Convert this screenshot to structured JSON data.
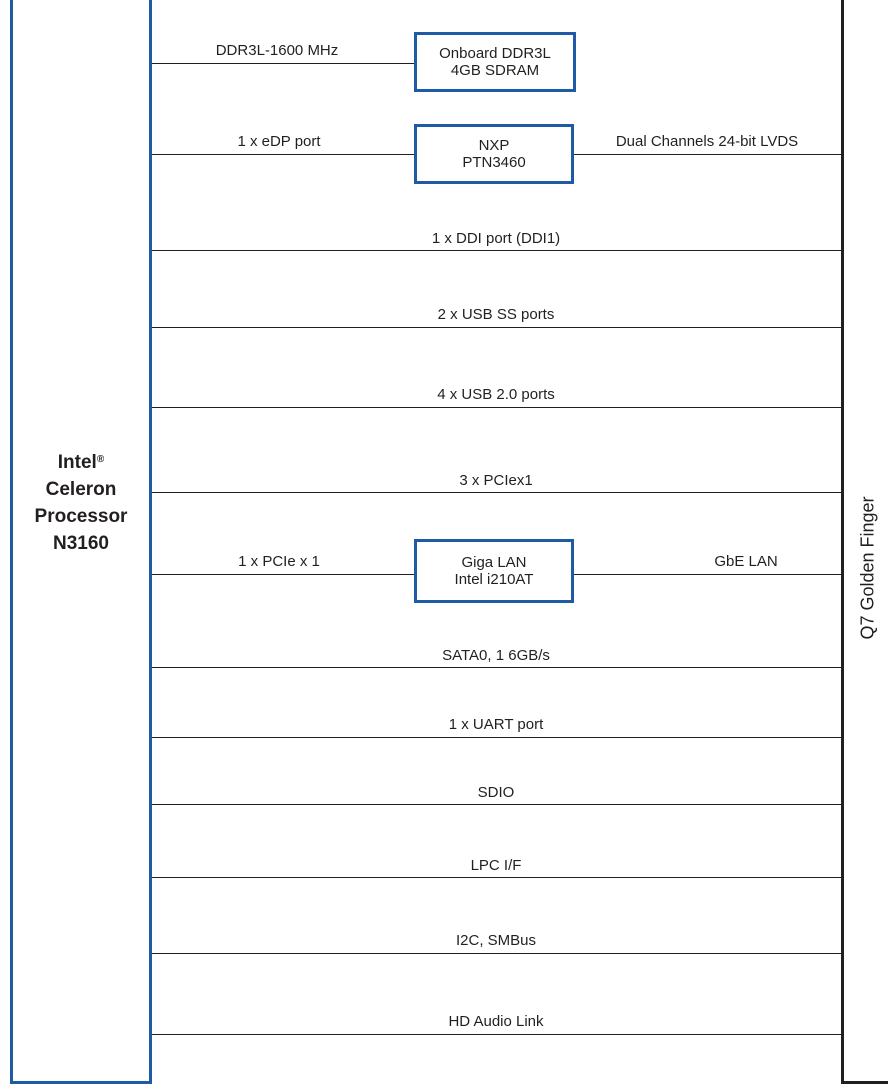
{
  "cpu": {
    "line1": "Intel",
    "reg": "®",
    "line2": "Celeron",
    "line3": "Processor",
    "line4": "N3160"
  },
  "connector": {
    "label": "Q7 Golden Finger"
  },
  "chips": {
    "ddr": {
      "line1": "Onboard DDR3L",
      "line2": "4GB SDRAM"
    },
    "nxp": {
      "line1": "NXP",
      "line2": "PTN3460"
    },
    "lan": {
      "line1": "Giga LAN",
      "line2": "Intel i210AT"
    }
  },
  "signals": {
    "ddr_bus": "DDR3L-1600 MHz",
    "edp": "1 x eDP port",
    "lvds": "Dual Channels 24-bit LVDS",
    "ddi": "1 x DDI port (DDI1)",
    "usb_ss": "2 x USB SS ports",
    "usb2": "4 x USB 2.0 ports",
    "pcie": "3 x PCIex1",
    "pcie_lan": "1 x PCIe x 1",
    "gbe": "GbE LAN",
    "sata": "SATA0, 1 6GB/s",
    "uart": "1 x  UART port",
    "sdio": "SDIO",
    "lpc": "LPC I/F",
    "i2c": "I2C, SMBus",
    "audio": "HD Audio Link"
  }
}
